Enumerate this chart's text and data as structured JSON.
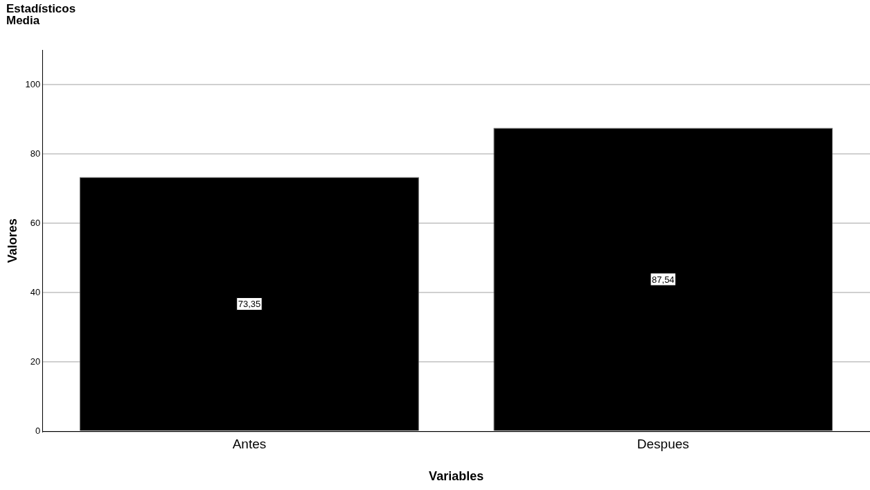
{
  "chart_data": {
    "type": "bar",
    "title": "Estadísticos",
    "subtitle": "Media",
    "xlabel": "Variables",
    "ylabel": "Valores",
    "categories": [
      "Antes",
      "Despues"
    ],
    "values": [
      73.35,
      87.54
    ],
    "value_labels": [
      "73,35",
      "87,54"
    ],
    "color": "#000000",
    "ylim": [
      0,
      110
    ],
    "yticks": [
      0,
      20,
      40,
      60,
      80,
      100
    ],
    "grid": "y",
    "legend": false
  }
}
